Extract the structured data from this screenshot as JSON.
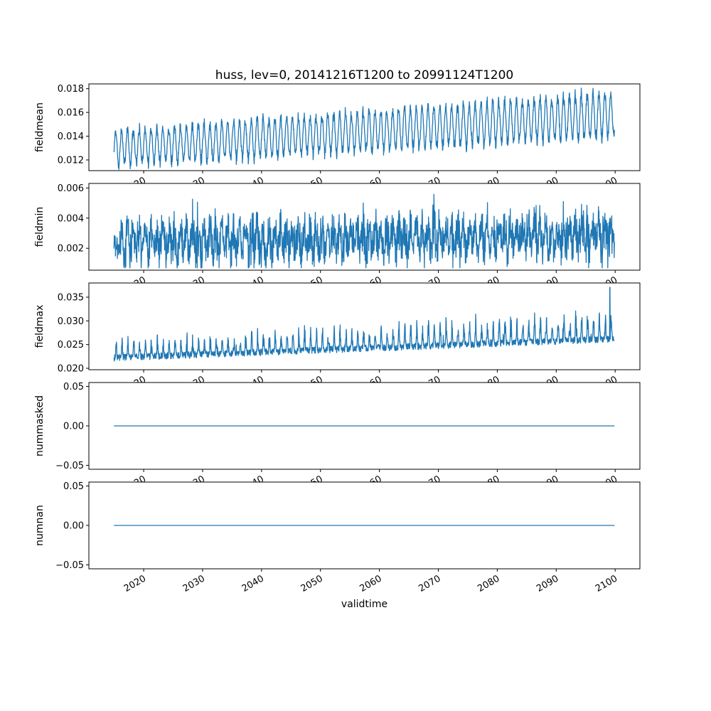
{
  "chart_data": {
    "type": "line",
    "title": "huss, lev=0, 20141216T1200 to 20991124T1200",
    "xlabel": "validtime",
    "line_color": "#1f77b4",
    "grid": false,
    "legend": "none",
    "x": {
      "lim": [
        2010.7,
        2104.2
      ],
      "ticks": [
        2020,
        2030,
        2040,
        2050,
        2060,
        2070,
        2080,
        2090,
        2100
      ],
      "tick_labels": [
        "2020",
        "2030",
        "2040",
        "2050",
        "2060",
        "2070",
        "2080",
        "2090",
        "2100"
      ],
      "data_start": 2014.96,
      "data_end": 2099.9,
      "points_per_year": 24
    },
    "subplots": [
      {
        "ylabel": "fieldmean",
        "ylim": [
          0.0111,
          0.0184
        ],
        "yticks": [
          0.012,
          0.014,
          0.016,
          0.018
        ],
        "ytick_labels": [
          "0.012",
          "0.014",
          "0.016",
          "0.018"
        ],
        "summary": "annual oscillation, band rising from ~0.0115-0.0148 in 2015 to ~0.0135-0.0181 in 2100",
        "gen": {
          "kind": "seasonal",
          "seed": 11,
          "base0": 0.013,
          "base1": 0.0158,
          "amp0": 0.00145,
          "amp1": 0.0018,
          "noise": 0.00022
        }
      },
      {
        "ylabel": "fieldmin",
        "ylim": [
          0.00055,
          0.0063
        ],
        "yticks": [
          0.002,
          0.004,
          0.006
        ],
        "ytick_labels": [
          "0.002",
          "0.004",
          "0.006"
        ],
        "summary": "dense noisy band ~0.001-0.005 with occasional spikes to 0.006, slight upward trend",
        "gen": {
          "kind": "noisy",
          "seed": 22,
          "base0": 0.0024,
          "base1": 0.0029,
          "amp": 0.0007,
          "noise": 0.0012,
          "min": 0.0007,
          "max": 0.0061
        }
      },
      {
        "ylabel": "fieldmax",
        "ylim": [
          0.0197,
          0.038
        ],
        "yticks": [
          0.02,
          0.025,
          0.03,
          0.035
        ],
        "ytick_labels": [
          "0.020",
          "0.025",
          "0.030",
          "0.035"
        ],
        "summary": "baseline ~0.022 rising to ~0.027 with seasonal upward spikes; peaks ~0.028 early, ~0.033 late, max ~0.037 near 2099",
        "gen": {
          "kind": "spiky",
          "seed": 33,
          "base0": 0.0222,
          "base1": 0.0262,
          "noise": 0.0007,
          "spike": 0.0055,
          "min": 0.0205,
          "max": 0.0373,
          "anomaly_t": 2099.1,
          "anomaly_v": 0.0371
        }
      },
      {
        "ylabel": "nummasked",
        "ylim": [
          -0.055,
          0.055
        ],
        "yticks": [
          -0.05,
          0.0,
          0.05
        ],
        "ytick_labels": [
          "−0.05",
          "0.00",
          "0.05"
        ],
        "summary": "constant 0 for entire period",
        "gen": {
          "kind": "flat",
          "value": 0
        }
      },
      {
        "ylabel": "numnan",
        "ylim": [
          -0.055,
          0.055
        ],
        "yticks": [
          -0.05,
          0.0,
          0.05
        ],
        "ytick_labels": [
          "−0.05",
          "0.00",
          "0.05"
        ],
        "summary": "constant 0 for entire period",
        "gen": {
          "kind": "flat",
          "value": 0
        }
      }
    ]
  }
}
